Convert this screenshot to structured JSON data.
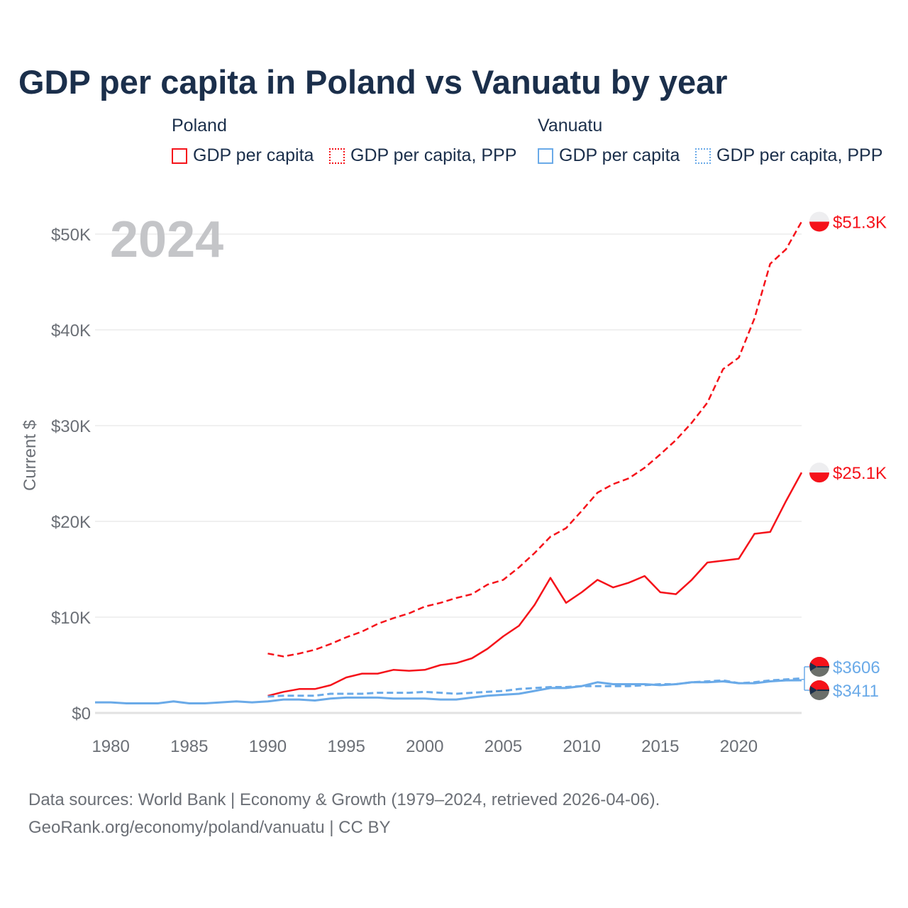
{
  "title": "GDP per capita in Poland vs Vanuatu by year",
  "legend": {
    "groups": [
      {
        "name": "Poland",
        "items": [
          "GDP per capita",
          "GDP per capita, PPP"
        ]
      },
      {
        "name": "Vanuatu",
        "items": [
          "GDP per capita",
          "GDP per capita, PPP"
        ]
      }
    ]
  },
  "colors": {
    "poland": "#f5121a",
    "vanuatu": "#6aaae8"
  },
  "source": [
    "Data sources: World Bank | Economy & Growth (1979–2024, retrieved 2026-04-06).",
    "GeoRank.org/economy/poland/vanuatu | CC BY"
  ],
  "chart_data": {
    "type": "line",
    "title": "GDP per capita in Poland vs Vanuatu by year",
    "year_label": "2024",
    "ylabel": "Current $",
    "xlabel": "",
    "xlim": [
      1979,
      2024
    ],
    "ylim": [
      0,
      52000
    ],
    "x_ticks": [
      1980,
      1985,
      1990,
      1995,
      2000,
      2005,
      2010,
      2015,
      2020
    ],
    "y_ticks": [
      0,
      10000,
      20000,
      30000,
      40000,
      50000
    ],
    "y_tick_labels": [
      "$0",
      "$10K",
      "$20K",
      "$30K",
      "$40K",
      "$50K"
    ],
    "grid": true,
    "series": [
      {
        "name": "Poland GDP per capita",
        "country": "poland",
        "dashed": false,
        "start": 1990,
        "end_label": "$25.1K",
        "values": [
          1780,
          2200,
          2500,
          2500,
          2900,
          3700,
          4100,
          4100,
          4500,
          4400,
          4500,
          5000,
          5200,
          5700,
          6700,
          8000,
          9100,
          11300,
          14100,
          11500,
          12600,
          13900,
          13100,
          13600,
          14300,
          12600,
          12400,
          13900,
          15700,
          15900,
          16100,
          18700,
          18900,
          22100,
          25100
        ]
      },
      {
        "name": "Poland GDP per capita, PPP",
        "country": "poland",
        "dashed": true,
        "start": 1990,
        "end_label": "$51.3K",
        "values": [
          6200,
          5900,
          6200,
          6600,
          7200,
          7900,
          8500,
          9300,
          9900,
          10400,
          11100,
          11500,
          12000,
          12400,
          13400,
          13900,
          15200,
          16700,
          18400,
          19300,
          21100,
          23000,
          23900,
          24500,
          25600,
          27000,
          28500,
          30300,
          32400,
          35900,
          37100,
          41200,
          46900,
          48400,
          51300
        ]
      },
      {
        "name": "Vanuatu GDP per capita",
        "country": "vanuatu",
        "dashed": false,
        "start": 1979,
        "end_label": "$3411",
        "values": [
          1100,
          1100,
          1000,
          1000,
          1000,
          1200,
          1000,
          1000,
          1100,
          1200,
          1100,
          1200,
          1400,
          1400,
          1300,
          1500,
          1600,
          1600,
          1600,
          1500,
          1500,
          1500,
          1400,
          1400,
          1600,
          1800,
          1900,
          2000,
          2300,
          2600,
          2600,
          2800,
          3200,
          3000,
          3000,
          3000,
          2900,
          3000,
          3200,
          3200,
          3300,
          3100,
          3100,
          3300,
          3400,
          3411
        ]
      },
      {
        "name": "Vanuatu GDP per capita, PPP",
        "country": "vanuatu",
        "dashed": true,
        "start": 1990,
        "end_label": "$3606",
        "values": [
          1700,
          1800,
          1800,
          1800,
          2000,
          2000,
          2000,
          2100,
          2100,
          2100,
          2200,
          2100,
          2000,
          2100,
          2200,
          2300,
          2500,
          2600,
          2700,
          2700,
          2800,
          2800,
          2800,
          2800,
          2900,
          3000,
          3000,
          3200,
          3300,
          3400,
          3100,
          3200,
          3400,
          3500,
          3606
        ]
      }
    ]
  }
}
